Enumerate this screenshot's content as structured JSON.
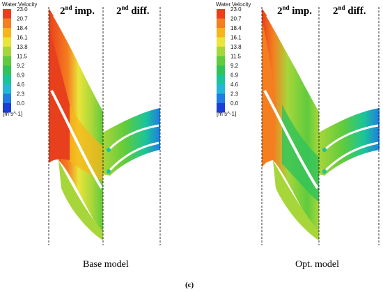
{
  "legend": {
    "title": "Water.Velocity",
    "ticks": [
      "23.0",
      "20.7",
      "18.4",
      "16.1",
      "13.8",
      "11.5",
      "9.2",
      "6.9",
      "4.6",
      "2.3",
      "0.0"
    ],
    "unit": "[m s^-1]",
    "colors": [
      "#e8401c",
      "#f57e20",
      "#f7b51b",
      "#e9e53a",
      "#a7d63a",
      "#5fcb3d",
      "#2fc35a",
      "#19c49a",
      "#22b7d7",
      "#1f7ce3",
      "#1a3fd6"
    ]
  },
  "panels": [
    {
      "imp_label": "2",
      "imp_sup": "nd",
      "imp_word": " imp.",
      "diff_label": "2",
      "diff_sup": "nd",
      "diff_word": " diff.",
      "caption": "Base model"
    },
    {
      "imp_label": "2",
      "imp_sup": "nd",
      "imp_word": " imp.",
      "diff_label": "2",
      "diff_sup": "nd",
      "diff_word": " diff.",
      "caption": "Opt. model"
    }
  ],
  "figure_label": "(c)"
}
